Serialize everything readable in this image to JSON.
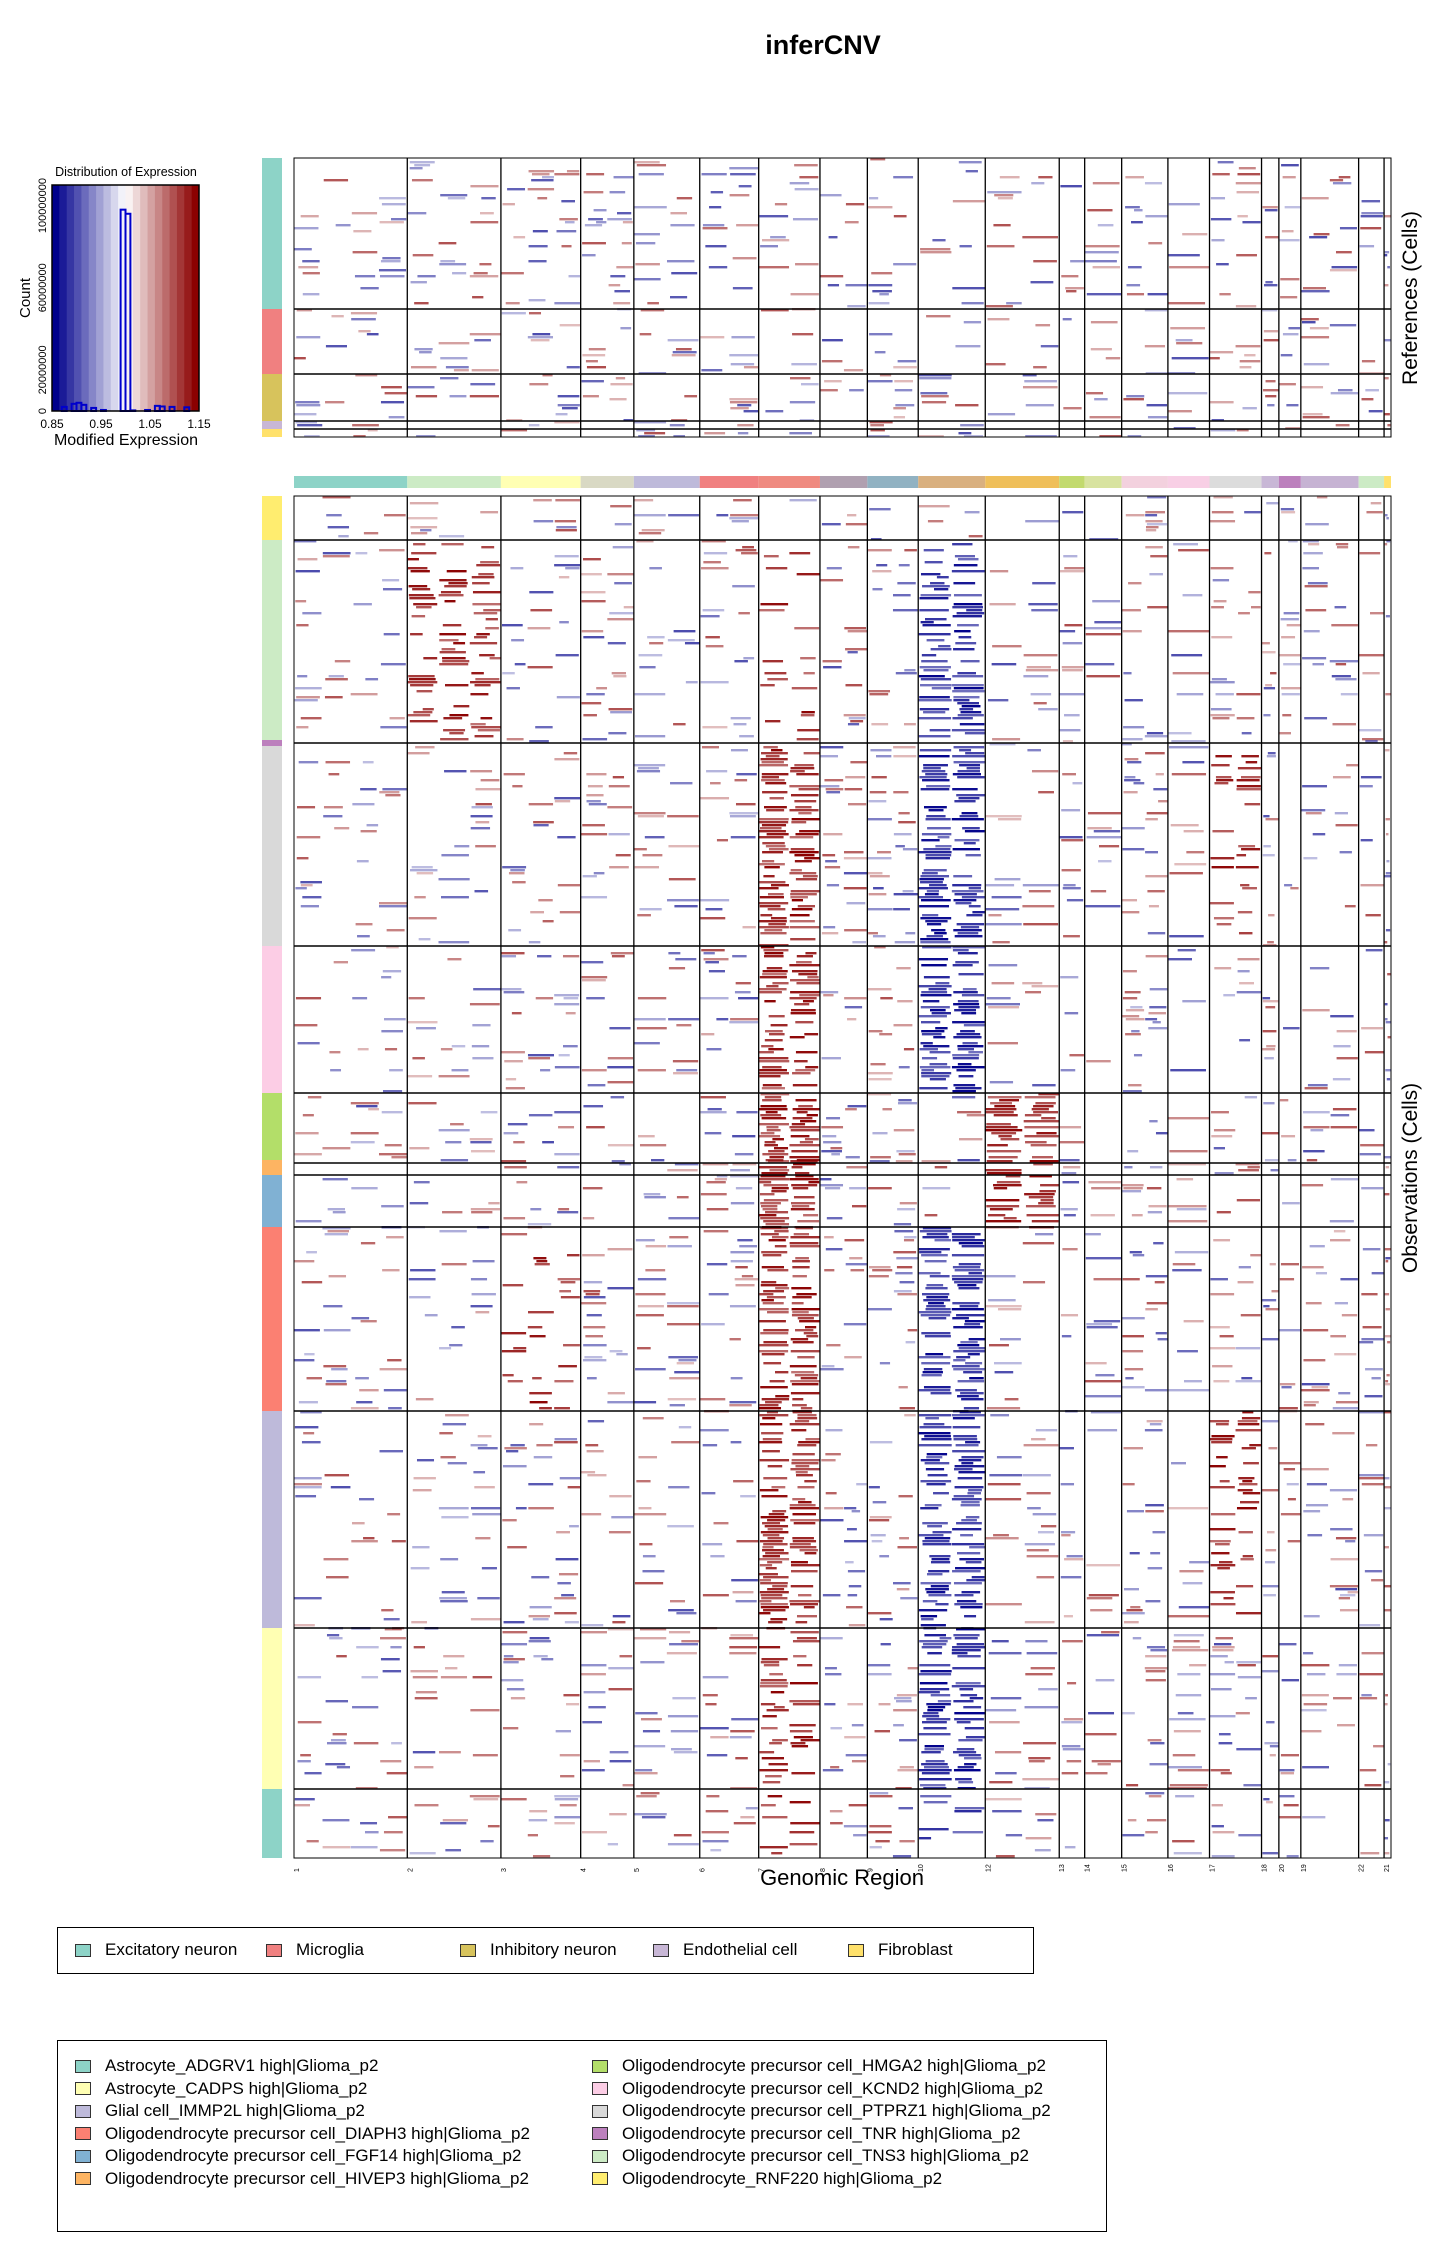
{
  "title": "inferCNV",
  "histogram": {
    "title": "Distribution of Expression",
    "xlabel": "Modified Expression",
    "ylabel": "Count",
    "xticks": [
      "0.85",
      "0.95",
      "1.05",
      "1.15"
    ],
    "yticks": [
      "0",
      "20000000",
      "60000000",
      "100000000"
    ]
  },
  "heatmap": {
    "xlabel": "Genomic Region",
    "references_label": "References (Cells)",
    "observations_label": "Observations (Cells)",
    "chromosomes": [
      "1",
      "2",
      "3",
      "4",
      "5",
      "6",
      "7",
      "8",
      "9",
      "10",
      "12",
      "13",
      "14",
      "15",
      "16",
      "17",
      "18",
      "20",
      "19",
      "22",
      "21"
    ],
    "colors": {
      "gain": "#8b0000",
      "loss": "#00008b",
      "neutral": "#ffffff"
    }
  },
  "reference_legend": [
    {
      "label": "Excitatory neuron",
      "color": "#8dd3c7"
    },
    {
      "label": "Microglia",
      "color": "#f08080"
    },
    {
      "label": "Inhibitory neuron",
      "color": "#d7c35c"
    },
    {
      "label": "Endothelial cell",
      "color": "#c8b7d6"
    },
    {
      "label": "Fibroblast",
      "color": "#ffe16b"
    }
  ],
  "observation_legend": [
    {
      "label": "Astrocyte_ADGRV1 high|Glioma_p2",
      "color": "#8dd3c7"
    },
    {
      "label": "Astrocyte_CADPS high|Glioma_p2",
      "color": "#ffffb3"
    },
    {
      "label": "Glial cell_IMMP2L high|Glioma_p2",
      "color": "#bebada"
    },
    {
      "label": "Oligodendrocyte precursor cell_DIAPH3 high|Glioma_p2",
      "color": "#fb8072"
    },
    {
      "label": "Oligodendrocyte precursor cell_FGF14 high|Glioma_p2",
      "color": "#80b1d3"
    },
    {
      "label": "Oligodendrocyte precursor cell_HIVEP3 high|Glioma_p2",
      "color": "#fdb462"
    },
    {
      "label": "Oligodendrocyte precursor cell_HMGA2 high|Glioma_p2",
      "color": "#b3de69"
    },
    {
      "label": "Oligodendrocyte precursor cell_KCND2 high|Glioma_p2",
      "color": "#fccde5"
    },
    {
      "label": "Oligodendrocyte precursor cell_PTPRZ1 high|Glioma_p2",
      "color": "#d9d9d9"
    },
    {
      "label": "Oligodendrocyte precursor cell_TNR high|Glioma_p2",
      "color": "#bc80bd"
    },
    {
      "label": "Oligodendrocyte precursor cell_TNS3 high|Glioma_p2",
      "color": "#ccebc5"
    },
    {
      "label": "Oligodendrocyte_RNF220 high|Glioma_p2",
      "color": "#ffed6f"
    }
  ],
  "chart_data": [
    {
      "type": "bar",
      "title": "Distribution of Expression",
      "xlabel": "Modified Expression",
      "ylabel": "Count",
      "xlim": [
        0.85,
        1.15
      ],
      "ylim": [
        0,
        110000000
      ],
      "x": [
        0.875,
        0.895,
        0.905,
        0.915,
        0.935,
        0.955,
        0.995,
        1.005,
        1.015,
        1.045,
        1.065,
        1.075,
        1.095,
        1.125
      ],
      "values": [
        2000000,
        3500000,
        4000000,
        3000000,
        1500000,
        500000,
        98000000,
        96000000,
        300000,
        500000,
        2500000,
        2200000,
        2000000,
        1800000
      ]
    },
    {
      "type": "heatmap",
      "xlabel": "Genomic Region",
      "x_categories": [
        "1",
        "2",
        "3",
        "4",
        "5",
        "6",
        "7",
        "8",
        "9",
        "10",
        "12",
        "13",
        "14",
        "15",
        "16",
        "17",
        "18",
        "20",
        "19",
        "22",
        "21"
      ],
      "rows_references": [
        "Excitatory neuron",
        "Microglia",
        "Inhibitory neuron",
        "Endothelial cell",
        "Fibroblast"
      ],
      "rows_observations": [
        "Oligodendrocyte_RNF220 high|Glioma_p2",
        "Oligodendrocyte precursor cell_TNS3 high|Glioma_p2",
        "Oligodendrocyte precursor cell_TNR high|Glioma_p2",
        "Oligodendrocyte precursor cell_PTPRZ1 high|Glioma_p2",
        "Oligodendrocyte precursor cell_KCND2 high|Glioma_p2",
        "Oligodendrocyte precursor cell_HMGA2 high|Glioma_p2",
        "Oligodendrocyte precursor cell_HIVEP3 high|Glioma_p2",
        "Oligodendrocyte precursor cell_FGF14 high|Glioma_p2",
        "Oligodendrocyte precursor cell_DIAPH3 high|Glioma_p2",
        "Glial cell_IMMP2L high|Glioma_p2",
        "Astrocyte_CADPS high|Glioma_p2",
        "Astrocyte_ADGRV1 high|Glioma_p2"
      ],
      "summary": [
        {
          "chromosome": "7",
          "state": "gain",
          "groups": "most observation groups"
        },
        {
          "chromosome": "10",
          "state": "loss",
          "groups": "most observation groups"
        },
        {
          "chromosome": "12",
          "state": "gain",
          "groups": "HMGA2 high, HIVEP3 high, FGF14 high"
        },
        {
          "chromosome": "17",
          "state": "gain",
          "groups": "TNS3 high, PTPRZ1 high, DIAPH3 high, IMMP2L high"
        },
        {
          "chromosome": "2",
          "state": "gain",
          "groups": "TNS3 high"
        }
      ]
    }
  ]
}
